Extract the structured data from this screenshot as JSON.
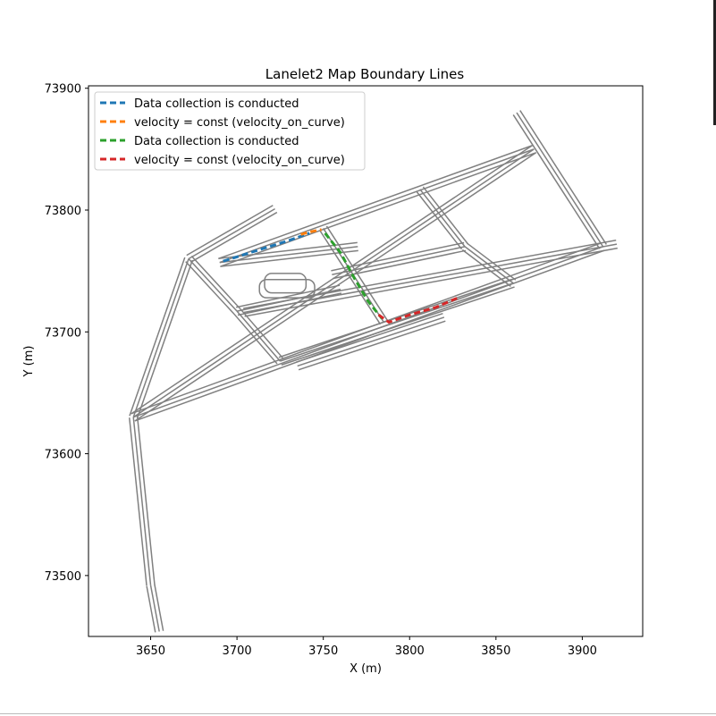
{
  "chart_data": {
    "type": "line",
    "title": "Lanelet2 Map Boundary Lines",
    "xlabel": "X (m)",
    "ylabel": "Y (m)",
    "xlim": [
      3614,
      3935
    ],
    "ylim": [
      73450,
      73902
    ],
    "x_ticks": [
      3650,
      3700,
      3750,
      3800,
      3850,
      3900
    ],
    "y_ticks": [
      73500,
      73600,
      73700,
      73800,
      73900
    ],
    "legend_position": "top-left",
    "map_line_color": "#808080",
    "map_roads": [
      [
        [
          3640,
          73630
        ],
        [
          3872,
          73850
        ]
      ],
      [
        [
          3690,
          73757
        ],
        [
          3872,
          73850
        ]
      ],
      [
        [
          3640,
          73630
        ],
        [
          3912,
          73770
        ]
      ],
      [
        [
          3704,
          73716
        ],
        [
          3920,
          73772
        ]
      ],
      [
        [
          3690,
          73757
        ],
        [
          3770,
          73770
        ]
      ],
      [
        [
          3755,
          73747
        ],
        [
          3832,
          73770
        ]
      ],
      [
        [
          3700,
          73717
        ],
        [
          3760,
          73735
        ]
      ],
      [
        [
          3725,
          73676
        ],
        [
          3860,
          73740
        ]
      ],
      [
        [
          3735,
          73672
        ],
        [
          3820,
          73712
        ]
      ],
      [
        [
          3672,
          73760
        ],
        [
          3700,
          73717
        ]
      ],
      [
        [
          3700,
          73717
        ],
        [
          3725,
          73676
        ]
      ],
      [
        [
          3750,
          73785
        ],
        [
          3785,
          73708
        ]
      ],
      [
        [
          3806,
          73817
        ],
        [
          3832,
          73770
        ]
      ],
      [
        [
          3832,
          73770
        ],
        [
          3860,
          73740
        ]
      ],
      [
        [
          3862,
          73880
        ],
        [
          3912,
          73770
        ]
      ],
      [
        [
          3640,
          73630
        ],
        [
          3672,
          73760
        ]
      ],
      [
        [
          3672,
          73760
        ],
        [
          3722,
          73801
        ]
      ],
      [
        [
          3640,
          73630
        ],
        [
          3650,
          73492
        ]
      ],
      [
        [
          3650,
          73492
        ],
        [
          3655,
          73454
        ]
      ]
    ],
    "map_loops": [
      [
        [
          3713,
          73728
        ],
        [
          3745,
          73743
        ]
      ],
      [
        [
          3716,
          73732
        ],
        [
          3740,
          73748
        ]
      ]
    ],
    "series": [
      {
        "name": "Data collection is conducted",
        "color": "#1f77b4",
        "x": [
          3692,
          3712,
          3730,
          3742
        ],
        "y": [
          73758,
          73767,
          73775,
          73781
        ]
      },
      {
        "name": "velocity = const (velocity_on_curve)",
        "color": "#ff7f0e",
        "x": [
          3737,
          3742,
          3749
        ],
        "y": [
          73780,
          73782,
          73784
        ]
      },
      {
        "name": "Data collection is conducted",
        "color": "#2ca02c",
        "x": [
          3751,
          3760,
          3768,
          3776,
          3784
        ],
        "y": [
          73781,
          73765,
          73744,
          73725,
          73711
        ]
      },
      {
        "name": "velocity = const (velocity_on_curve)",
        "color": "#d62728",
        "x": [
          3782,
          3788,
          3800,
          3815,
          3828
        ],
        "y": [
          73714,
          73708,
          73714,
          73720,
          73728
        ]
      }
    ]
  }
}
